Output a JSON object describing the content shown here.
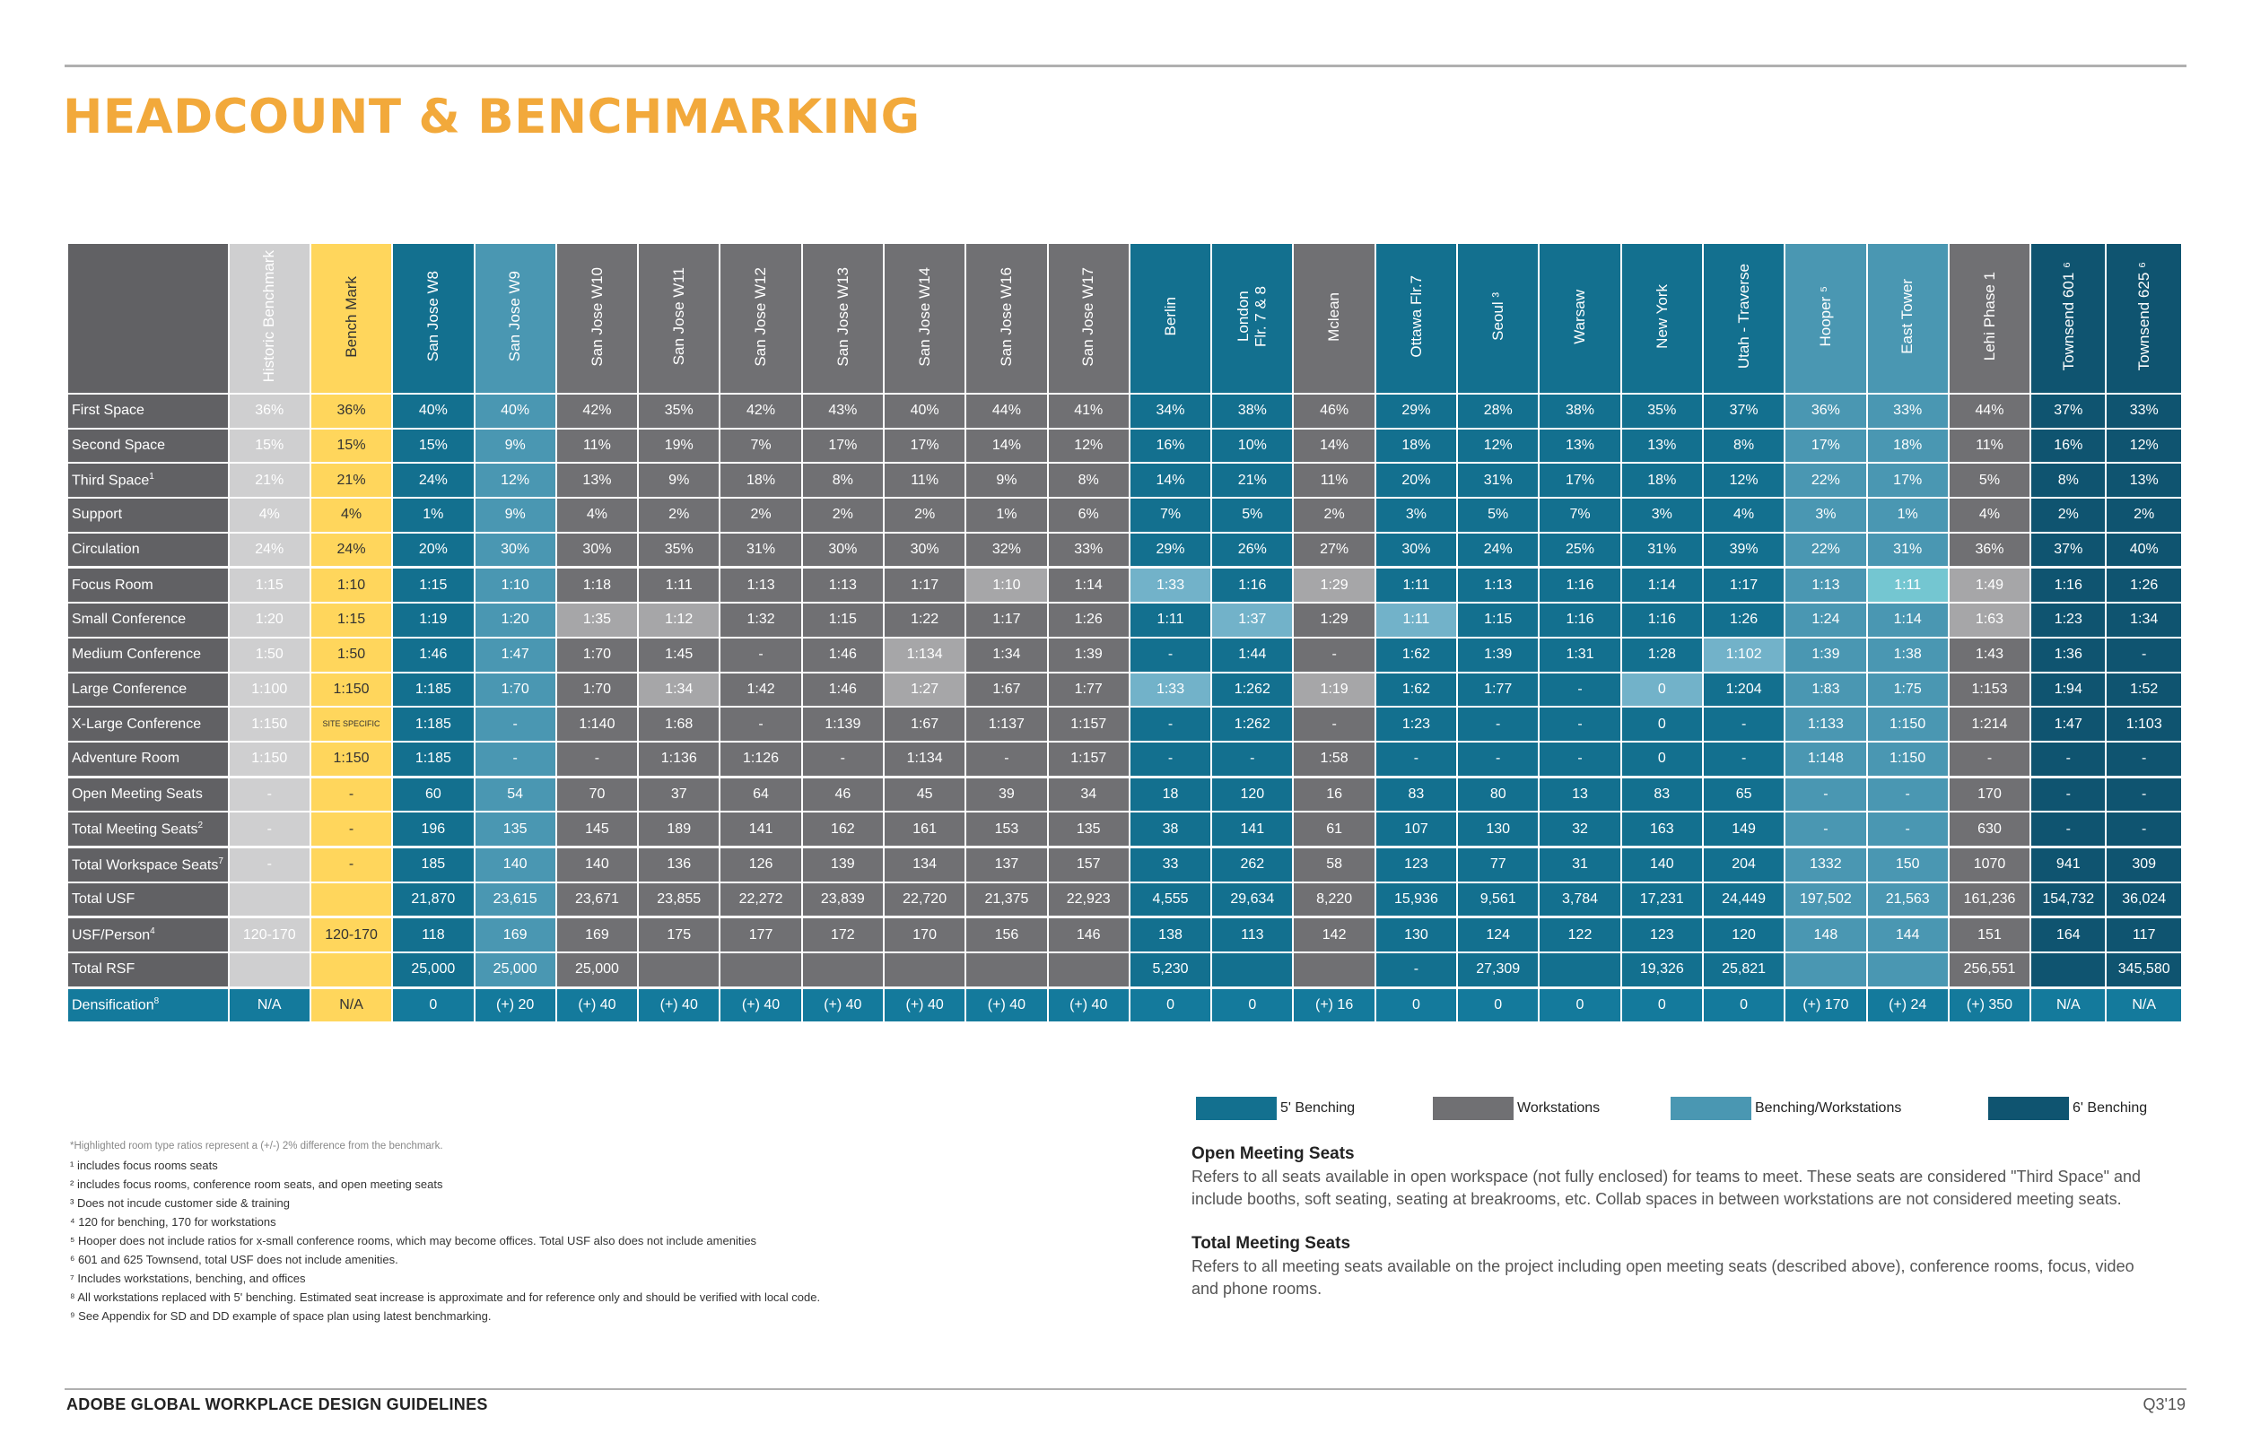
{
  "title": "HEADCOUNT & BENCHMARKING",
  "columns": [
    {
      "label": "Historic Benchmark",
      "theme": "hist"
    },
    {
      "label": "Bench Mark",
      "theme": "bench"
    },
    {
      "label": "San Jose W8",
      "theme": "dark"
    },
    {
      "label": "San Jose W9",
      "theme": "light"
    },
    {
      "label": "San Jose W10",
      "theme": "gray"
    },
    {
      "label": "San Jose W11",
      "theme": "gray"
    },
    {
      "label": "San Jose W12",
      "theme": "gray"
    },
    {
      "label": "San Jose W13",
      "theme": "gray"
    },
    {
      "label": "San Jose W14",
      "theme": "gray"
    },
    {
      "label": "San Jose W16",
      "theme": "gray"
    },
    {
      "label": "San Jose W17",
      "theme": "gray"
    },
    {
      "label": "Berlin",
      "theme": "dark"
    },
    {
      "label": "London\nFlr. 7 & 8",
      "theme": "dark"
    },
    {
      "label": "Mclean",
      "theme": "gray"
    },
    {
      "label": "Ottawa Flr.7",
      "theme": "dark"
    },
    {
      "label": "Seoul ³",
      "theme": "dark"
    },
    {
      "label": "Warsaw",
      "theme": "dark"
    },
    {
      "label": "New York",
      "theme": "dark"
    },
    {
      "label": "Utah - Traverse",
      "theme": "dark"
    },
    {
      "label": "Hooper ⁵",
      "theme": "light"
    },
    {
      "label": "East Tower",
      "theme": "light"
    },
    {
      "label": "Lehi Phase 1",
      "theme": "gray"
    },
    {
      "label": "Townsend 601 ⁶",
      "theme": "navy"
    },
    {
      "label": "Townsend 625 ⁶",
      "theme": "navy"
    }
  ],
  "rows": [
    {
      "label": "First Space",
      "sup": "",
      "values": [
        "36%",
        "36%",
        "40%",
        "40%",
        "42%",
        "35%",
        "42%",
        "43%",
        "40%",
        "44%",
        "41%",
        "34%",
        "38%",
        "46%",
        "29%",
        "28%",
        "38%",
        "35%",
        "37%",
        "36%",
        "33%",
        "44%",
        "37%",
        "33%"
      ]
    },
    {
      "label": "Second Space",
      "sup": "",
      "values": [
        "15%",
        "15%",
        "15%",
        "9%",
        "11%",
        "19%",
        "7%",
        "17%",
        "17%",
        "14%",
        "12%",
        "16%",
        "10%",
        "14%",
        "18%",
        "12%",
        "13%",
        "13%",
        "8%",
        "17%",
        "18%",
        "11%",
        "16%",
        "12%"
      ]
    },
    {
      "label": "Third Space",
      "sup": "1",
      "values": [
        "21%",
        "21%",
        "24%",
        "12%",
        "13%",
        "9%",
        "18%",
        "8%",
        "11%",
        "9%",
        "8%",
        "14%",
        "21%",
        "11%",
        "20%",
        "31%",
        "17%",
        "18%",
        "12%",
        "22%",
        "17%",
        "5%",
        "8%",
        "13%"
      ]
    },
    {
      "label": "Support",
      "sup": "",
      "values": [
        "4%",
        "4%",
        "1%",
        "9%",
        "4%",
        "2%",
        "2%",
        "2%",
        "2%",
        "1%",
        "6%",
        "7%",
        "5%",
        "2%",
        "3%",
        "5%",
        "7%",
        "3%",
        "4%",
        "3%",
        "1%",
        "4%",
        "2%",
        "2%"
      ]
    },
    {
      "label": "Circulation",
      "sup": "",
      "values": [
        "24%",
        "24%",
        "20%",
        "30%",
        "30%",
        "35%",
        "31%",
        "30%",
        "30%",
        "32%",
        "33%",
        "29%",
        "26%",
        "27%",
        "30%",
        "24%",
        "25%",
        "31%",
        "39%",
        "22%",
        "31%",
        "36%",
        "37%",
        "40%"
      ]
    },
    {
      "label": "Focus Room",
      "sup": "",
      "values": [
        "1:15",
        "1:10",
        "1:15",
        "1:10",
        "1:18",
        "1:11",
        "1:13",
        "1:13",
        "1:17",
        "1:10",
        "1:14",
        "1:33",
        "1:16",
        "1:29",
        "1:11",
        "1:13",
        "1:16",
        "1:14",
        "1:17",
        "1:13",
        "1:11",
        "1:49",
        "1:16",
        "1:26"
      ]
    },
    {
      "label": "Small Conference",
      "sup": "",
      "values": [
        "1:20",
        "1:15",
        "1:19",
        "1:20",
        "1:35",
        "1:12",
        "1:32",
        "1:15",
        "1:22",
        "1:17",
        "1:26",
        "1:11",
        "1:37",
        "1:29",
        "1:11",
        "1:15",
        "1:16",
        "1:16",
        "1:26",
        "1:24",
        "1:14",
        "1:63",
        "1:23",
        "1:34"
      ]
    },
    {
      "label": "Medium Conference",
      "sup": "",
      "values": [
        "1:50",
        "1:50",
        "1:46",
        "1:47",
        "1:70",
        "1:45",
        "-",
        "1:46",
        "1:134",
        "1:34",
        "1:39",
        "-",
        "1:44",
        "-",
        "1:62",
        "1:39",
        "1:31",
        "1:28",
        "1:102",
        "1:39",
        "1:38",
        "1:43",
        "1:36",
        "-"
      ]
    },
    {
      "label": "Large Conference",
      "sup": "",
      "values": [
        "1:100",
        "1:150",
        "1:185",
        "1:70",
        "1:70",
        "1:34",
        "1:42",
        "1:46",
        "1:27",
        "1:67",
        "1:77",
        "1:33",
        "1:262",
        "1:19",
        "1:62",
        "1:77",
        "-",
        "0",
        "1:204",
        "1:83",
        "1:75",
        "1:153",
        "1:94",
        "1:52"
      ]
    },
    {
      "label": "X-Large Conference",
      "sup": "",
      "values": [
        "1:150",
        "SITE SPECIFIC",
        "1:185",
        "-",
        "1:140",
        "1:68",
        "-",
        "1:139",
        "1:67",
        "1:137",
        "1:157",
        "-",
        "1:262",
        "-",
        "1:23",
        "-",
        "-",
        "0",
        "-",
        "1:133",
        "1:150",
        "1:214",
        "1:47",
        "1:103"
      ]
    },
    {
      "label": "Adventure Room",
      "sup": "",
      "values": [
        "1:150",
        "1:150",
        "1:185",
        "-",
        "-",
        "1:136",
        "1:126",
        "-",
        "1:134",
        "-",
        "1:157",
        "-",
        "-",
        "1:58",
        "-",
        "-",
        "-",
        "0",
        "-",
        "1:148",
        "1:150",
        "-",
        "-",
        "-"
      ]
    },
    {
      "label": "Open Meeting Seats",
      "sup": "",
      "values": [
        "-",
        "-",
        "60",
        "54",
        "70",
        "37",
        "64",
        "46",
        "45",
        "39",
        "34",
        "18",
        "120",
        "16",
        "83",
        "80",
        "13",
        "83",
        "65",
        "-",
        "-",
        "170",
        "-",
        "-"
      ]
    },
    {
      "label": "Total Meeting Seats",
      "sup": "2",
      "values": [
        "-",
        "-",
        "196",
        "135",
        "145",
        "189",
        "141",
        "162",
        "161",
        "153",
        "135",
        "38",
        "141",
        "61",
        "107",
        "130",
        "32",
        "163",
        "149",
        "-",
        "-",
        "630",
        "-",
        "-"
      ]
    },
    {
      "label": "Total Workspace Seats",
      "sup": "7",
      "values": [
        "-",
        "-",
        "185",
        "140",
        "140",
        "136",
        "126",
        "139",
        "134",
        "137",
        "157",
        "33",
        "262",
        "58",
        "123",
        "77",
        "31",
        "140",
        "204",
        "1332",
        "150",
        "1070",
        "941",
        "309"
      ]
    },
    {
      "label": "Total USF",
      "sup": "",
      "values": [
        "",
        "",
        "21,870",
        "23,615",
        "23,671",
        "23,855",
        "22,272",
        "23,839",
        "22,720",
        "21,375",
        "22,923",
        "4,555",
        "29,634",
        "8,220",
        "15,936",
        "9,561",
        "3,784",
        "17,231",
        "24,449",
        "197,502",
        "21,563",
        "161,236",
        "154,732",
        "36,024"
      ]
    },
    {
      "label": "USF/Person",
      "sup": "4",
      "values": [
        "120-170",
        "120-170",
        "118",
        "169",
        "169",
        "175",
        "177",
        "172",
        "170",
        "156",
        "146",
        "138",
        "113",
        "142",
        "130",
        "124",
        "122",
        "123",
        "120",
        "148",
        "144",
        "151",
        "164",
        "117"
      ]
    },
    {
      "label": "Total RSF",
      "sup": "",
      "values": [
        "",
        "",
        "25,000",
        "25,000",
        "25,000",
        "",
        "",
        "",
        "",
        "",
        "",
        "5,230",
        "",
        "",
        "-",
        "27,309",
        "",
        "19,326",
        "25,821",
        "",
        "",
        "256,551",
        "",
        "345,580"
      ]
    },
    {
      "label": "Densification",
      "sup": "8",
      "values": [
        "N/A",
        "N/A",
        "0",
        "(+) 20",
        "(+) 40",
        "(+) 40",
        "(+) 40",
        "(+) 40",
        "(+) 40",
        "(+) 40",
        "(+) 40",
        "0",
        "0",
        "(+) 16",
        "0",
        "0",
        "0",
        "0",
        "0",
        "(+) 170",
        "(+) 24",
        "(+) 350",
        "N/A",
        "N/A"
      ]
    }
  ],
  "highlight_color": "#a6a6a8",
  "legend": [
    {
      "label": "5' Benching",
      "color": "#13708f"
    },
    {
      "label": "Workstations",
      "color": "#707073"
    },
    {
      "label": "Benching/Workstations",
      "color": "#4a97b2"
    },
    {
      "label": "6' Benching",
      "color": "#0f5470"
    }
  ],
  "footnotes": [
    "*Highlighted room type ratios represent a (+/-) 2% difference from the benchmark.",
    "¹ includes focus rooms seats",
    "² includes focus rooms, conference room seats, and open meeting seats",
    "³ Does not incude customer side & training",
    "⁴ 120 for benching, 170 for workstations",
    "⁵ Hooper does not include ratios for x-small conference rooms, which may become offices. Total USF also does not include amenities",
    "⁶ 601 and 625 Townsend, total USF does not include amenities.",
    "⁷ Includes workstations, benching, and offices",
    "⁸ All workstations replaced with 5' benching. Estimated seat increase is approximate and for reference only and should be verified with local code.",
    "⁹ See Appendix for SD and DD example of space plan using latest benchmarking."
  ],
  "definitions": [
    {
      "heading": "Open Meeting Seats",
      "text": "Refers to all seats available in open workspace (not fully enclosed) for teams to meet. These seats are considered \"Third Space\" and include booths, soft seating, seating at breakrooms, etc. Collab spaces in between workstations are not considered meeting seats."
    },
    {
      "heading": "Total Meeting Seats",
      "text": "Refers to all meeting seats available on the project including open meeting seats (described above), conference rooms, focus, video and phone rooms."
    }
  ],
  "footer": {
    "left": "ADOBE GLOBAL WORKPLACE DESIGN GUIDELINES",
    "right": "Q3'19"
  }
}
